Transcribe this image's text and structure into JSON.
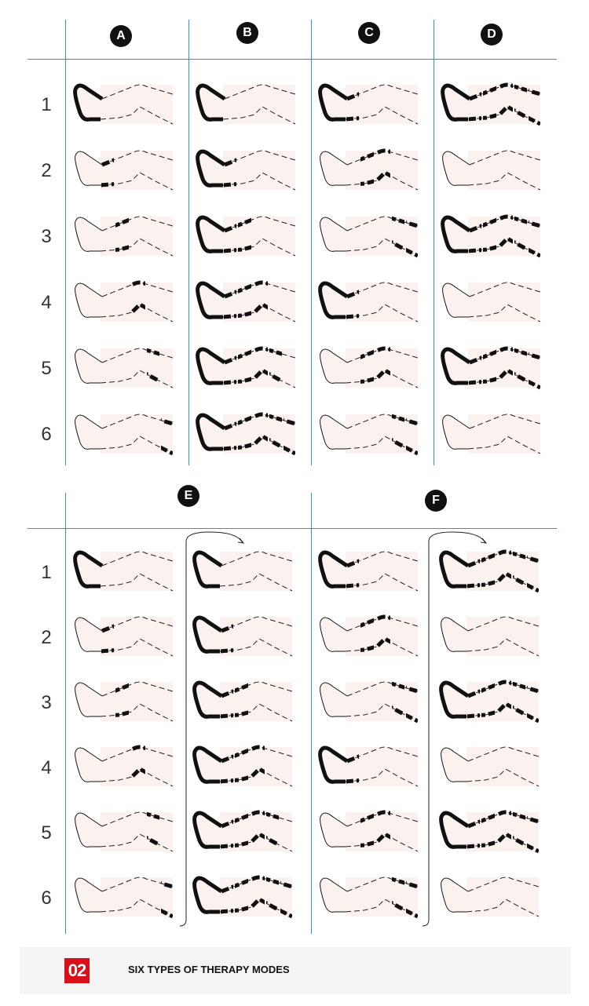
{
  "colors": {
    "grid": "#2a9bb0",
    "leg_fill": "#fbf1ee",
    "chamber": "#111111",
    "badge_red": "#d7101a"
  },
  "rows": [
    "1",
    "2",
    "3",
    "4",
    "5",
    "6"
  ],
  "top_section": {
    "modes": [
      {
        "label": "A",
        "states": [
          "F",
          "1",
          "2",
          "3",
          "4",
          "5"
        ]
      },
      {
        "label": "B",
        "states": [
          "F",
          "F1",
          "F12",
          "F123",
          "F1234",
          "F12345"
        ]
      },
      {
        "label": "C",
        "states": [
          "F1",
          "23",
          "45",
          "F1",
          "23",
          "45"
        ]
      },
      {
        "label": "D",
        "states": [
          "F12345",
          "",
          "F12345",
          "",
          "F12345",
          ""
        ]
      }
    ]
  },
  "bottom_section": {
    "modes": [
      {
        "label": "E",
        "columns": [
          [
            "F",
            "1",
            "2",
            "3",
            "4",
            "5"
          ],
          [
            "F",
            "F1",
            "F12",
            "F123",
            "F1234",
            "F12345"
          ]
        ]
      },
      {
        "label": "F",
        "columns": [
          [
            "F1",
            "23",
            "45",
            "F1",
            "23",
            "45"
          ],
          [
            "F12345",
            "",
            "F12345",
            "",
            "F12345",
            ""
          ]
        ]
      }
    ]
  },
  "banner": {
    "number": "02",
    "title": "SIX TYPES OF THERAPY MODES"
  }
}
